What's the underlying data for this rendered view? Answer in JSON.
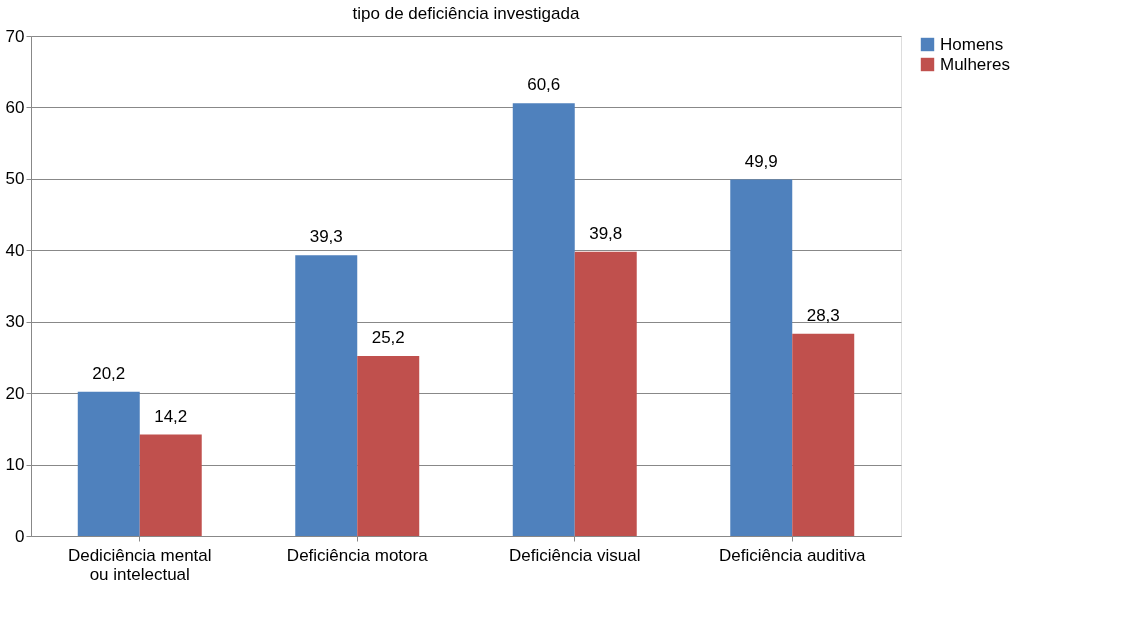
{
  "chart_data": {
    "type": "bar",
    "title": "tipo de deficiência investigada",
    "categories": [
      "Dediciência mental ou intelectual",
      "Deficiência motora",
      "Deficiência visual",
      "Deficiência auditiva"
    ],
    "series": [
      {
        "name": "Homens",
        "color": "#4f81bd",
        "values": [
          20.2,
          39.3,
          60.6,
          49.9
        ],
        "value_labels": [
          "20,2",
          "39,3",
          "60,6",
          "49,9"
        ]
      },
      {
        "name": "Mulheres",
        "color": "#c0504d",
        "values": [
          14.2,
          25.2,
          39.8,
          28.3
        ],
        "value_labels": [
          "14,2",
          "25,2",
          "39,8",
          "28,3"
        ]
      }
    ],
    "ylim": [
      0,
      70
    ],
    "yticks": [
      0,
      10,
      20,
      30,
      40,
      50,
      60,
      70
    ],
    "grid": "y",
    "legend": "right"
  }
}
